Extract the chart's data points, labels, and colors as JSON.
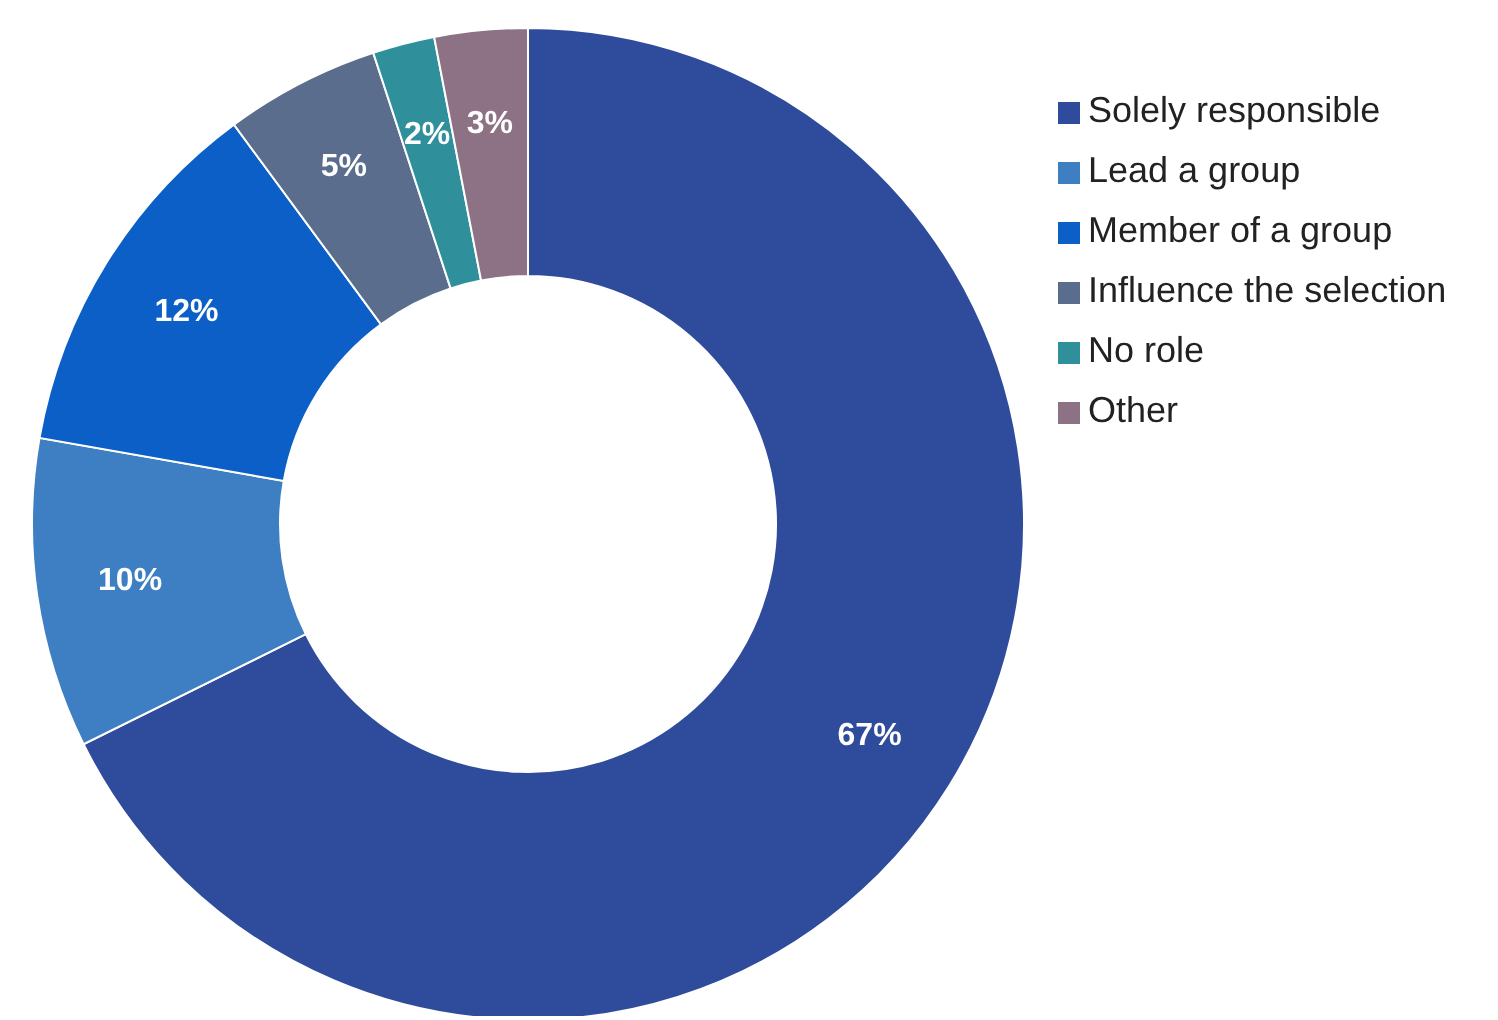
{
  "chart_data": {
    "type": "donut",
    "categories": [
      "Solely responsible",
      "Lead a group",
      "Member of a group",
      "Influence the selection",
      "No role",
      "Other"
    ],
    "values": [
      67,
      10,
      12,
      5,
      2,
      3
    ],
    "value_labels": [
      "67%",
      "10%",
      "12%",
      "5%",
      "2%",
      "3%"
    ],
    "colors": [
      "#2f4c9c",
      "#3d7fc2",
      "#0b5fc6",
      "#5b6d8c",
      "#2f909c",
      "#8c7284"
    ],
    "legend": "right"
  }
}
